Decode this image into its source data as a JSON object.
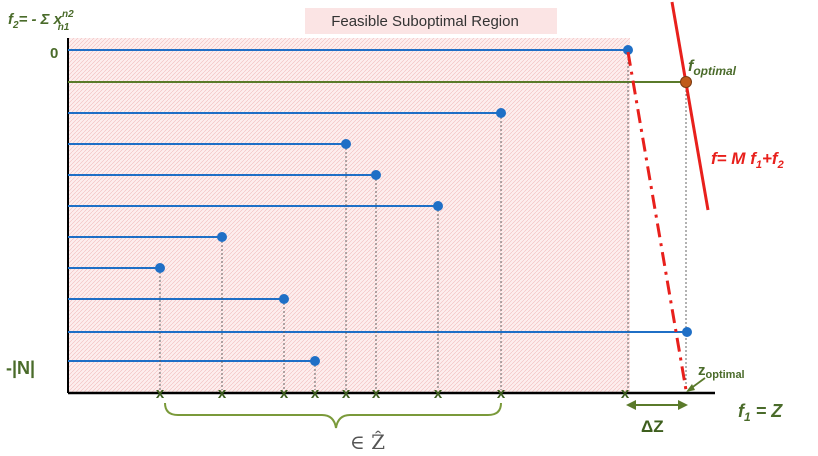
{
  "diagram": {
    "region_label": "Feasible Suboptimal Region",
    "y_axis": {
      "label_main": "f",
      "label_sub": "2",
      "label_rest": "= - Σ x",
      "label_sup": "n2",
      "label_sub2": "n1",
      "tick_top": "0",
      "tick_bottom": "-|N|"
    },
    "x_axis": {
      "label_main": "f",
      "label_sub": "1",
      "label_rest": " = Z"
    },
    "f_optimal": {
      "main": "f",
      "sub": "optimal"
    },
    "z_optimal": {
      "main": "z",
      "sub": "optimal"
    },
    "objective": {
      "text": "f= M f",
      "sub1": "1",
      "plus": "+f",
      "sub2": "2"
    },
    "delta_z": "ΔZ",
    "set_label": "∈ Ẑ",
    "marker_symbol": "x",
    "colors": {
      "blue": "#1f6fc6",
      "green": "#5a7a2a",
      "red": "#e8201c",
      "region_fill": "#fbe4e4",
      "axis": "#000000"
    }
  }
}
